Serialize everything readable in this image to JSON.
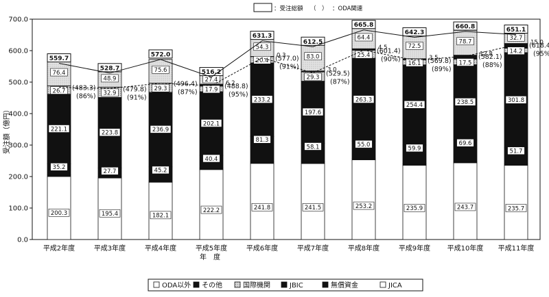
{
  "chart_data": {
    "type": "bar",
    "stacked": true,
    "ylabel": "受注額（億円）",
    "xlabel": "年　度",
    "ylim": [
      0,
      700
    ],
    "yticks": [
      "0.0",
      "100.0",
      "200.0",
      "300.0",
      "400.0",
      "500.0",
      "600.0",
      "700.0"
    ],
    "categories": [
      "平成2年度",
      "平成3年度",
      "平成4年度",
      "平成5年度",
      "平成6年度",
      "平成7年度",
      "平成8年度",
      "平成9年度",
      "平成10年度",
      "平成11年度"
    ],
    "series": [
      {
        "name": "JICA",
        "color": "#ffffff",
        "values": [
          200.3,
          195.4,
          182.1,
          222.2,
          241.8,
          241.5,
          253.2,
          235.9,
          243.7,
          235.7
        ]
      },
      {
        "name": "無償資金",
        "color": "#111111",
        "values": [
          5.0,
          4.4,
          3.3,
          4.8,
          4.6,
          5.9,
          4.6,
          4.6,
          3.6,
          4.4
        ]
      },
      {
        "name": "無償資金",
        "color": "#111111",
        "values": [
          35.2,
          27.7,
          45.2,
          40.4,
          81.3,
          58.1,
          55.0,
          59.9,
          69.6,
          51.7
        ]
      },
      {
        "name": "JBIC",
        "color": "#111111",
        "values": [
          221.1,
          223.8,
          236.9,
          202.1,
          233.2,
          197.6,
          263.3,
          254.4,
          238.5,
          301.8
        ]
      },
      {
        "name": "国際機関",
        "color": "#999999",
        "values": [
          26.7,
          32.9,
          29.3,
          17.9,
          20.4,
          29.3,
          25.4,
          16.1,
          17.5,
          14.2
        ]
      },
      {
        "name": "その他",
        "color": "#111111",
        "values": [
          0,
          0,
          0,
          6.2,
          0.3,
          3.0,
          4.5,
          3.5,
          12.8,
          15.0
        ]
      },
      {
        "name": "ODA以外",
        "color": "#dddddd",
        "values": [
          76.4,
          48.9,
          75.6,
          27.4,
          54.3,
          83.0,
          64.4,
          72.5,
          78.7,
          32.7
        ]
      }
    ],
    "segment_labels": [
      [
        "200.3",
        "",
        "35.2",
        "221.1",
        "26.7",
        "",
        "76.4"
      ],
      [
        "195.4",
        "",
        "27.7",
        "223.8",
        "32.9",
        "",
        "48.9"
      ],
      [
        "182.1",
        "",
        "45.2",
        "236.9",
        "29.3",
        "",
        "75.6"
      ],
      [
        "222.2",
        "",
        "40.4",
        "202.1",
        "17.9",
        "6.2",
        "27.4"
      ],
      [
        "241.8",
        "",
        "81.3",
        "233.2",
        "20.4",
        "0.3",
        "54.3"
      ],
      [
        "241.5",
        "",
        "58.1",
        "197.6",
        "29.3",
        "3.0",
        "83.0"
      ],
      [
        "253.2",
        "",
        "55.0",
        "263.3",
        "25.4",
        "4.5",
        "64.4"
      ],
      [
        "235.9",
        "",
        "59.9",
        "254.4",
        "16.1",
        "3.5",
        "72.5"
      ],
      [
        "243.7",
        "",
        "69.6",
        "238.5",
        "17.5",
        "12.8",
        "78.7"
      ],
      [
        "235.7",
        "",
        "51.7",
        "301.8",
        "14.2",
        "15.0",
        "32.7"
      ]
    ],
    "totals": [
      559.7,
      528.7,
      572.0,
      516.2,
      631.3,
      612.5,
      665.8,
      642.3,
      660.8,
      651.1
    ],
    "totals_text": [
      "559.7",
      "528.7",
      "572.0",
      "516.2",
      "631.3",
      "612.5",
      "665.8",
      "642.3",
      "660.8",
      "651.1"
    ],
    "oda_related": [
      483.3,
      479.8,
      496.4,
      488.8,
      577.0,
      529.5,
      601.4,
      569.8,
      582.1,
      618.4
    ],
    "oda_text": [
      "(483.3)",
      "(479.8)",
      "(496.4)",
      "(488.8)",
      "(577.0)",
      "(529.5)",
      "(601.4)",
      "(569.8)",
      "(582.1)",
      "(618.4)"
    ],
    "oda_pct_text": [
      "(86%)",
      "(91%)",
      "(87%)",
      "(95%)",
      "(91%)",
      "(87%)",
      "(90%)",
      "(89%)",
      "(88%)",
      "(95%)"
    ],
    "top_legend": {
      "total_label": "：受注総額",
      "oda_symbol": "（　）",
      "oda_label": "：ODA関連"
    },
    "legend": [
      {
        "label": "ODA以外",
        "color": "#ffffff"
      },
      {
        "label": "その他",
        "color": "#111111"
      },
      {
        "label": "国際機関",
        "color": "#999999"
      },
      {
        "label": "JBIC",
        "color": "#111111"
      },
      {
        "label": "無償資金",
        "color": "#111111"
      },
      {
        "label": "JICA",
        "color": "#ffffff"
      }
    ]
  }
}
